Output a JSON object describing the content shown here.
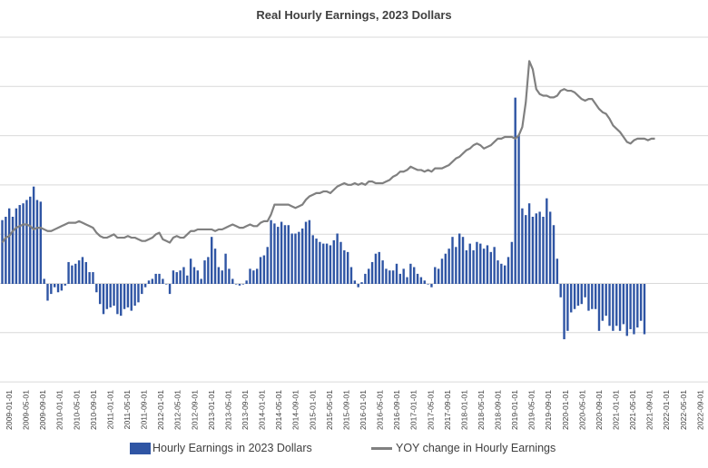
{
  "chart_data": {
    "type": "bar+line",
    "title": "Real Hourly Earnings, 2023 Dollars",
    "grid": true,
    "legend_position": "bottom",
    "colors": {
      "bars": "#2f55a4",
      "line": "#808080",
      "grid": "#d9d9d9",
      "text": "#404040"
    },
    "x_tick_labels": [
      "2009-01-01",
      "2009-05-01",
      "2009-09-01",
      "2010-01-01",
      "2010-05-01",
      "2010-09-01",
      "2011-01-01",
      "2011-05-01",
      "2011-09-01",
      "2012-01-01",
      "2012-05-01",
      "2012-09-01",
      "2013-01-01",
      "2013-05-01",
      "2013-09-01",
      "2014-01-01",
      "2014-05-01",
      "2014-09-01",
      "2015-01-01",
      "2015-05-01",
      "2015-09-01",
      "2016-01-01",
      "2016-05-01",
      "2016-09-01",
      "2017-01-01",
      "2017-05-01",
      "2017-09-01",
      "2018-01-01",
      "2018-05-01",
      "2018-09-01",
      "2019-01-01",
      "2019-05-01",
      "2019-09-01",
      "2020-01-01",
      "2020-05-01",
      "2020-09-01",
      "2021-01-01",
      "2021-05-01",
      "2021-09-01",
      "2022-01-01",
      "2022-05-01",
      "2022-09-01"
    ],
    "series": [
      {
        "name": "Hourly Earnings in 2023 Dollars",
        "kind": "bar",
        "values": [
          3.8,
          4.0,
          4.5,
          4.0,
          4.5,
          4.7,
          4.8,
          5.0,
          5.2,
          5.8,
          5.0,
          4.9,
          0.3,
          -1.0,
          -0.6,
          -0.2,
          -0.5,
          -0.4,
          -0.1,
          1.3,
          1.1,
          1.2,
          1.4,
          1.6,
          1.3,
          0.7,
          0.7,
          -0.5,
          -1.2,
          -1.8,
          -1.5,
          -1.4,
          -1.3,
          -1.8,
          -1.9,
          -1.5,
          -1.4,
          -1.6,
          -1.3,
          -1.1,
          -0.6,
          -0.2,
          0.2,
          0.3,
          0.6,
          0.6,
          0.3,
          0.0,
          -0.6,
          0.8,
          0.7,
          0.8,
          1.0,
          0.5,
          1.5,
          1.0,
          0.8,
          0.3,
          1.4,
          1.6,
          2.8,
          2.1,
          1.0,
          0.8,
          1.8,
          0.9,
          0.3,
          0.0,
          -0.1,
          0.0,
          0.2,
          0.9,
          0.8,
          0.9,
          1.6,
          1.7,
          2.2,
          3.8,
          3.6,
          3.4,
          3.7,
          3.5,
          3.5,
          3.0,
          3.0,
          3.1,
          3.3,
          3.7,
          3.8,
          2.9,
          2.7,
          2.5,
          2.4,
          2.4,
          2.3,
          2.6,
          3.0,
          2.5,
          2.0,
          1.9,
          1.0,
          0.2,
          -0.2,
          0.1,
          0.6,
          0.9,
          1.3,
          1.8,
          1.9,
          1.4,
          0.9,
          0.8,
          0.8,
          1.2,
          0.6,
          0.9,
          0.4,
          1.2,
          1.0,
          0.6,
          0.4,
          0.2,
          0.0,
          -0.2,
          1.0,
          0.9,
          1.5,
          1.8,
          2.1,
          2.8,
          2.2,
          3.0,
          2.8,
          2.0,
          2.4,
          2.0,
          2.5,
          2.4,
          2.1,
          2.3,
          1.9,
          2.2,
          1.4,
          1.2,
          1.1,
          1.6,
          2.5,
          11.1,
          8.9,
          4.5,
          4.1,
          4.8,
          4.0,
          4.2,
          4.3,
          4.0,
          5.1,
          4.3,
          3.5,
          1.5,
          -0.8,
          -3.3,
          -2.8,
          -1.7,
          -1.5,
          -1.3,
          -1.2,
          -0.8,
          -1.6,
          -1.5,
          -1.5,
          -2.8,
          -2.2,
          -1.9,
          -2.5,
          -2.8,
          -2.5,
          -2.8,
          -2.4,
          -3.1,
          -2.7,
          -3.0,
          -2.6,
          -2.2,
          -3.0
        ]
      },
      {
        "name": "YOY change in Hourly Earnings",
        "kind": "line",
        "values": [
          2.5,
          2.8,
          2.9,
          3.2,
          3.4,
          3.5,
          3.6,
          3.6,
          3.5,
          3.3,
          3.4,
          3.4,
          3.3,
          3.2,
          3.2,
          3.3,
          3.4,
          3.5,
          3.6,
          3.7,
          3.7,
          3.7,
          3.8,
          3.7,
          3.6,
          3.5,
          3.4,
          3.1,
          2.9,
          2.8,
          2.8,
          2.9,
          3.0,
          2.8,
          2.8,
          2.8,
          2.9,
          2.8,
          2.8,
          2.7,
          2.6,
          2.6,
          2.7,
          2.8,
          3.0,
          3.1,
          2.7,
          2.6,
          2.5,
          2.8,
          2.9,
          2.8,
          2.8,
          3.0,
          3.2,
          3.2,
          3.3,
          3.3,
          3.3,
          3.3,
          3.3,
          3.2,
          3.3,
          3.3,
          3.4,
          3.5,
          3.6,
          3.5,
          3.4,
          3.4,
          3.5,
          3.6,
          3.5,
          3.5,
          3.7,
          3.8,
          3.8,
          4.2,
          4.8,
          4.8,
          4.8,
          4.8,
          4.8,
          4.7,
          4.6,
          4.7,
          4.8,
          5.1,
          5.3,
          5.4,
          5.5,
          5.5,
          5.6,
          5.6,
          5.5,
          5.7,
          5.9,
          6.0,
          6.1,
          6.0,
          6.0,
          6.1,
          6.0,
          6.1,
          6.0,
          6.2,
          6.2,
          6.1,
          6.1,
          6.1,
          6.2,
          6.3,
          6.5,
          6.6,
          6.8,
          6.8,
          6.9,
          7.1,
          7.0,
          6.9,
          6.9,
          6.8,
          6.9,
          6.8,
          7.0,
          7.0,
          7.0,
          7.1,
          7.2,
          7.4,
          7.6,
          7.7,
          7.9,
          8.1,
          8.2,
          8.4,
          8.5,
          8.4,
          8.2,
          8.3,
          8.4,
          8.6,
          8.8,
          8.8,
          8.9,
          8.9,
          8.9,
          8.8,
          9.0,
          9.5,
          11.0,
          13.5,
          13.0,
          11.8,
          11.5,
          11.4,
          11.4,
          11.3,
          11.3,
          11.4,
          11.7,
          11.8,
          11.7,
          11.7,
          11.6,
          11.4,
          11.2,
          11.1,
          11.2,
          11.2,
          10.9,
          10.6,
          10.4,
          10.3,
          10.0,
          9.6,
          9.4,
          9.2,
          8.9,
          8.6,
          8.5,
          8.7,
          8.8,
          8.8,
          8.8,
          8.7,
          8.8,
          8.8
        ]
      }
    ]
  }
}
